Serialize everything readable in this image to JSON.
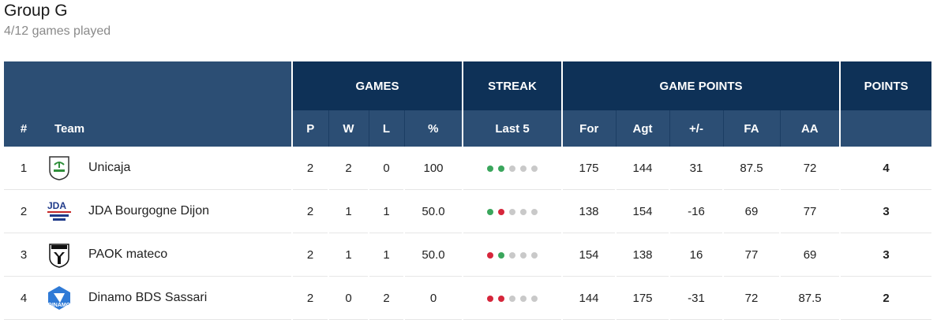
{
  "group": {
    "title": "Group G",
    "subtitle": "4/12 games played"
  },
  "colors": {
    "header_dark": "#0e3157",
    "header_light": "#2c4e74",
    "win": "#3aa65c",
    "loss": "#d6263b",
    "pending": "#c9c9c9"
  },
  "header": {
    "games": "GAMES",
    "streak": "STREAK",
    "game_points": "GAME POINTS",
    "points": "POINTS",
    "rank": "#",
    "team": "Team",
    "p": "P",
    "w": "W",
    "l": "L",
    "pct": "%",
    "last5": "Last 5",
    "for": "For",
    "agt": "Agt",
    "diff": "+/-",
    "fa": "FA",
    "aa": "AA"
  },
  "rows": [
    {
      "rank": "1",
      "team": "Unicaja",
      "logo": "unicaja-logo",
      "p": "2",
      "w": "2",
      "l": "0",
      "pct": "100",
      "streak": [
        "win",
        "win",
        "pending",
        "pending",
        "pending"
      ],
      "for": "175",
      "agt": "144",
      "diff": "31",
      "fa": "87.5",
      "aa": "72",
      "points": "4"
    },
    {
      "rank": "2",
      "team": "JDA Bourgogne Dijon",
      "logo": "jda-logo",
      "p": "2",
      "w": "1",
      "l": "1",
      "pct": "50.0",
      "streak": [
        "win",
        "loss",
        "pending",
        "pending",
        "pending"
      ],
      "for": "138",
      "agt": "154",
      "diff": "-16",
      "fa": "69",
      "aa": "77",
      "points": "3"
    },
    {
      "rank": "3",
      "team": "PAOK mateco",
      "logo": "paok-logo",
      "p": "2",
      "w": "1",
      "l": "1",
      "pct": "50.0",
      "streak": [
        "loss",
        "win",
        "pending",
        "pending",
        "pending"
      ],
      "for": "154",
      "agt": "138",
      "diff": "16",
      "fa": "77",
      "aa": "69",
      "points": "3"
    },
    {
      "rank": "4",
      "team": "Dinamo BDS Sassari",
      "logo": "dinamo-logo",
      "p": "2",
      "w": "0",
      "l": "2",
      "pct": "0",
      "streak": [
        "loss",
        "loss",
        "pending",
        "pending",
        "pending"
      ],
      "for": "144",
      "agt": "175",
      "diff": "-31",
      "fa": "72",
      "aa": "87.5",
      "points": "2"
    }
  ]
}
